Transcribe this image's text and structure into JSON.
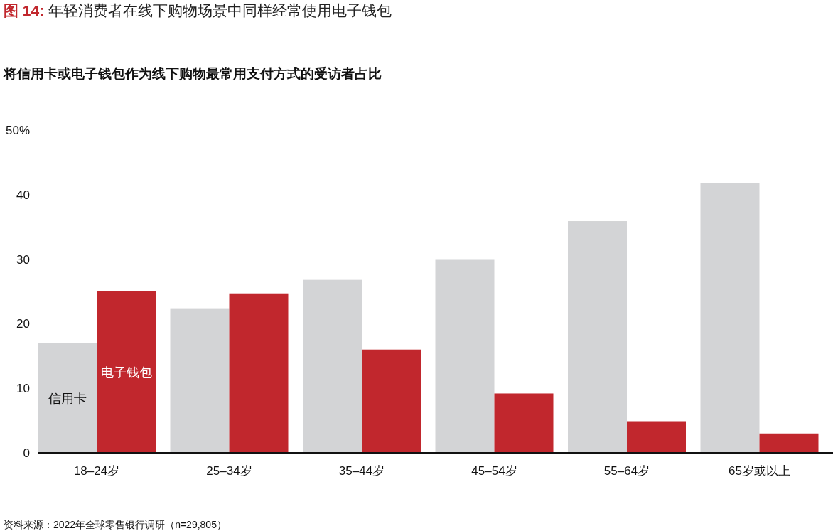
{
  "chart_data": {
    "type": "bar",
    "title": "图 14: 年轻消费者在线下购物场景中同样经常使用电子钱包",
    "subtitle": "将信用卡或电子钱包作为线下购物最常用支付方式的受访者占比",
    "categories": [
      "18–24岁",
      "25–34岁",
      "35–44岁",
      "45–54岁",
      "55–64岁",
      "65岁或以上"
    ],
    "series": [
      {
        "name": "信用卡",
        "color": "#d3d4d6",
        "values": [
          17.0,
          22.4,
          26.8,
          29.9,
          35.9,
          41.8
        ]
      },
      {
        "name": "电子钱包",
        "color": "#c1272d",
        "values": [
          25.1,
          24.7,
          16.0,
          9.2,
          4.9,
          3.0
        ]
      }
    ],
    "ylim": [
      0,
      50
    ],
    "yticks": [
      0,
      10,
      20,
      30,
      40,
      {
        "value": 50,
        "label": "50%"
      }
    ],
    "annotations": [
      "资料来源：2022年全球零售银行调研（n=29,805）"
    ]
  }
}
